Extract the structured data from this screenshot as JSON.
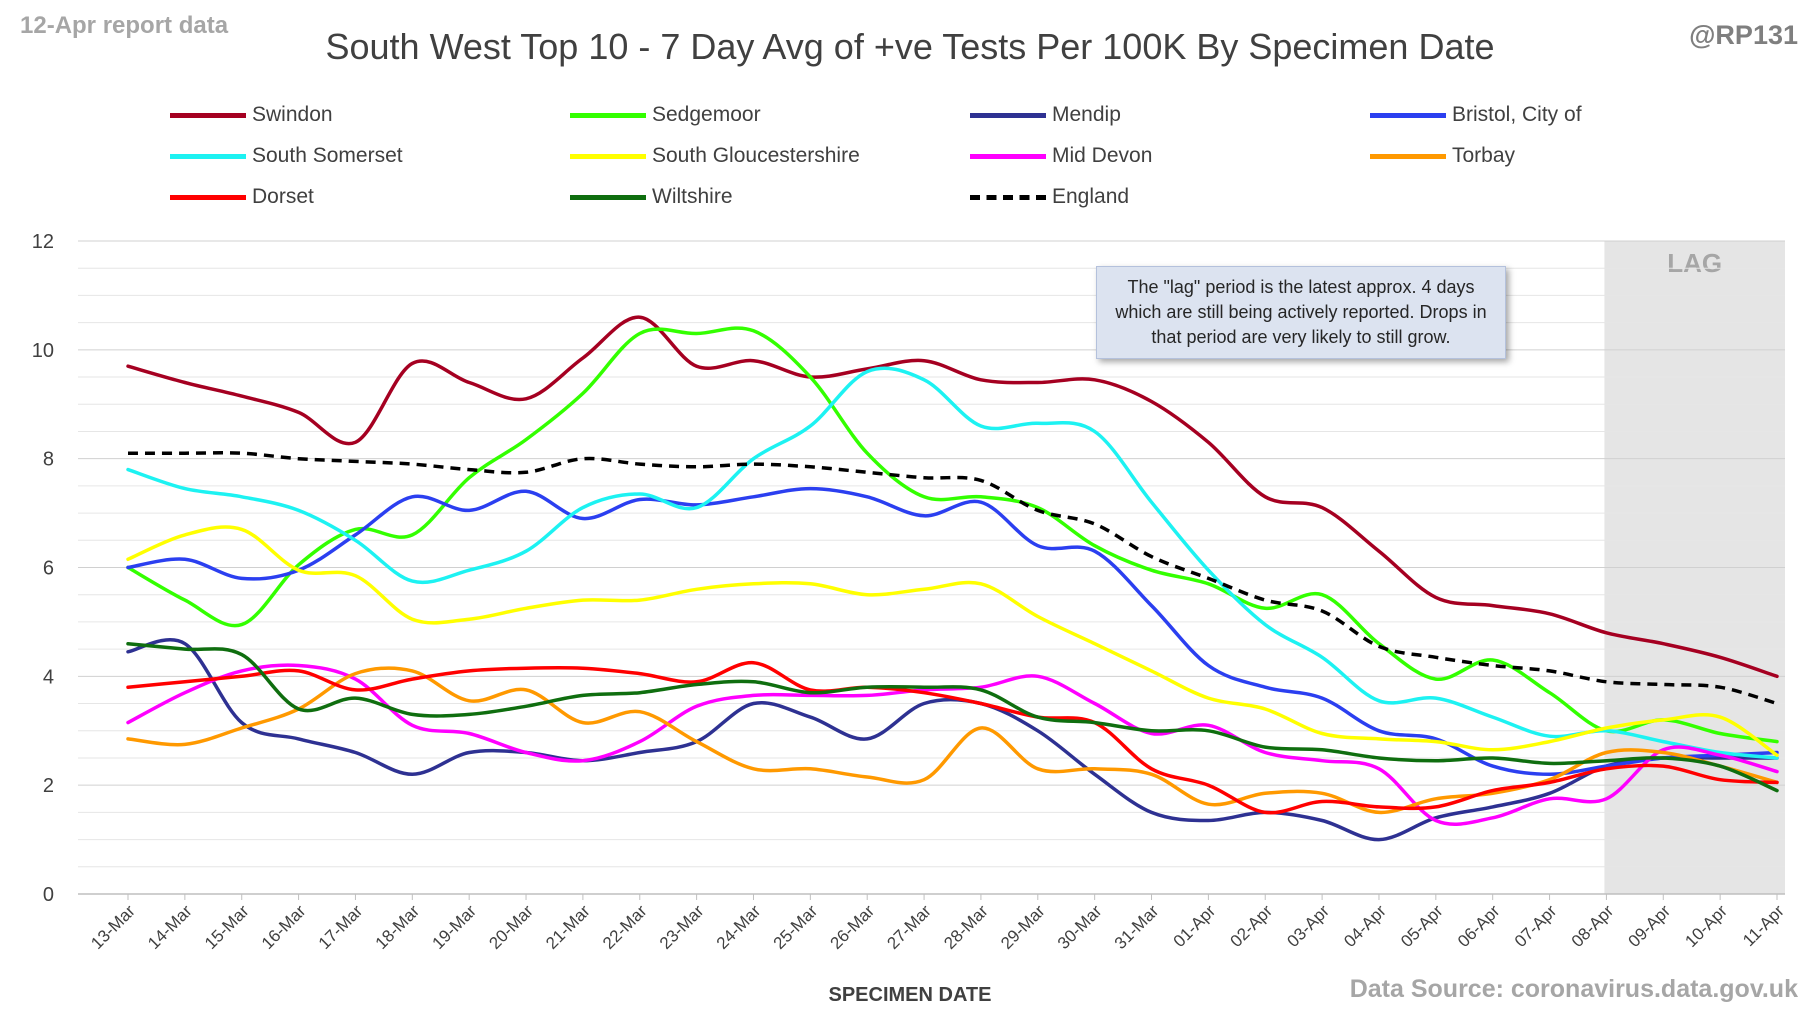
{
  "report_date": "12-Apr report data",
  "handle": "@RP131",
  "data_source": "Data Source: coronavirus.data.gov.uk",
  "lag_label": "LAG",
  "note": "The \"lag\" period is the latest approx. 4 days which are still being actively reported. Drops in that period are very likely to still grow.",
  "chart_data": {
    "type": "line",
    "title": "South West Top 10 - 7 Day Avg of +ve Tests Per 100K By Specimen Date",
    "xlabel": "SPECIMEN DATE",
    "ylabel": "",
    "ylim": [
      0,
      12
    ],
    "yticks": [
      0,
      2,
      4,
      6,
      8,
      10,
      12
    ],
    "grid": true,
    "legend_position": "top",
    "lag_start": "08-Apr",
    "lag_end": "11-Apr",
    "categories": [
      "13-Mar",
      "14-Mar",
      "15-Mar",
      "16-Mar",
      "17-Mar",
      "18-Mar",
      "19-Mar",
      "20-Mar",
      "21-Mar",
      "22-Mar",
      "23-Mar",
      "24-Mar",
      "25-Mar",
      "26-Mar",
      "27-Mar",
      "28-Mar",
      "29-Mar",
      "30-Mar",
      "31-Mar",
      "01-Apr",
      "02-Apr",
      "03-Apr",
      "04-Apr",
      "05-Apr",
      "06-Apr",
      "07-Apr",
      "08-Apr",
      "09-Apr",
      "10-Apr",
      "11-Apr"
    ],
    "series": [
      {
        "name": "Swindon",
        "color": "#a50021",
        "dashed": false,
        "values": [
          9.7,
          9.4,
          9.15,
          8.85,
          8.3,
          9.75,
          9.4,
          9.1,
          9.85,
          10.6,
          9.7,
          9.8,
          9.5,
          9.65,
          9.8,
          9.45,
          9.4,
          9.45,
          9.05,
          8.3,
          7.3,
          7.1,
          6.3,
          5.45,
          5.3,
          5.15,
          4.8,
          4.6,
          4.35,
          4.0
        ]
      },
      {
        "name": "Sedgemoor",
        "color": "#33ff00",
        "dashed": false,
        "values": [
          6.0,
          5.4,
          4.95,
          6.05,
          6.7,
          6.6,
          7.65,
          8.35,
          9.2,
          10.3,
          10.3,
          10.35,
          9.5,
          8.1,
          7.3,
          7.3,
          7.1,
          6.4,
          5.95,
          5.7,
          5.25,
          5.5,
          4.6,
          3.95,
          4.3,
          3.7,
          3.0,
          3.2,
          2.95,
          2.8
        ]
      },
      {
        "name": "Mendip",
        "color": "#2e3192",
        "dashed": false,
        "values": [
          4.45,
          4.6,
          3.15,
          2.85,
          2.6,
          2.2,
          2.6,
          2.6,
          2.45,
          2.6,
          2.8,
          3.5,
          3.25,
          2.85,
          3.5,
          3.5,
          3.0,
          2.2,
          1.5,
          1.35,
          1.5,
          1.35,
          1.0,
          1.4,
          1.6,
          1.85,
          2.35,
          2.5,
          2.5,
          2.5
        ]
      },
      {
        "name": "Bristol, City of",
        "color": "#2b3ff0",
        "dashed": false,
        "values": [
          6.0,
          6.15,
          5.8,
          5.95,
          6.6,
          7.3,
          7.05,
          7.4,
          6.9,
          7.25,
          7.15,
          7.3,
          7.45,
          7.3,
          6.95,
          7.2,
          6.4,
          6.3,
          5.3,
          4.2,
          3.8,
          3.6,
          3.0,
          2.85,
          2.35,
          2.2,
          2.35,
          2.5,
          2.55,
          2.6
        ]
      },
      {
        "name": "South Somerset",
        "color": "#1df2f2",
        "dashed": false,
        "values": [
          7.8,
          7.45,
          7.3,
          7.05,
          6.5,
          5.75,
          5.95,
          6.3,
          7.1,
          7.35,
          7.1,
          8.0,
          8.6,
          9.6,
          9.45,
          8.6,
          8.65,
          8.5,
          7.2,
          5.95,
          4.95,
          4.35,
          3.55,
          3.6,
          3.25,
          2.9,
          3.0,
          2.8,
          2.6,
          2.5
        ]
      },
      {
        "name": "South Gloucestershire",
        "color": "#ffff00",
        "dashed": false,
        "values": [
          6.15,
          6.6,
          6.7,
          5.95,
          5.85,
          5.05,
          5.05,
          5.25,
          5.4,
          5.4,
          5.6,
          5.7,
          5.7,
          5.5,
          5.6,
          5.7,
          5.1,
          4.6,
          4.1,
          3.6,
          3.4,
          2.95,
          2.85,
          2.8,
          2.65,
          2.8,
          3.05,
          3.2,
          3.25,
          2.55
        ]
      },
      {
        "name": "Mid Devon",
        "color": "#ff00ff",
        "dashed": false,
        "values": [
          3.15,
          3.7,
          4.1,
          4.2,
          3.95,
          3.1,
          2.95,
          2.6,
          2.45,
          2.8,
          3.45,
          3.65,
          3.65,
          3.65,
          3.75,
          3.8,
          4.0,
          3.5,
          2.95,
          3.1,
          2.6,
          2.45,
          2.3,
          1.35,
          1.4,
          1.75,
          1.75,
          2.65,
          2.55,
          2.25
        ]
      },
      {
        "name": "Torbay",
        "color": "#ff9900",
        "dashed": false,
        "values": [
          2.85,
          2.75,
          3.05,
          3.4,
          4.05,
          4.1,
          3.55,
          3.75,
          3.15,
          3.35,
          2.8,
          2.3,
          2.3,
          2.15,
          2.1,
          3.05,
          2.3,
          2.3,
          2.2,
          1.65,
          1.85,
          1.85,
          1.5,
          1.75,
          1.85,
          2.1,
          2.6,
          2.6,
          2.35,
          2.05
        ]
      },
      {
        "name": "Dorset",
        "color": "#ff0000",
        "dashed": false,
        "values": [
          3.8,
          3.9,
          4.0,
          4.1,
          3.75,
          3.95,
          4.1,
          4.15,
          4.15,
          4.05,
          3.9,
          4.25,
          3.75,
          3.8,
          3.7,
          3.5,
          3.25,
          3.15,
          2.3,
          2.0,
          1.5,
          1.7,
          1.6,
          1.6,
          1.9,
          2.05,
          2.3,
          2.35,
          2.1,
          2.05
        ]
      },
      {
        "name": "Wiltshire",
        "color": "#0f6e0f",
        "dashed": false,
        "values": [
          4.6,
          4.5,
          4.4,
          3.4,
          3.6,
          3.3,
          3.3,
          3.45,
          3.65,
          3.7,
          3.85,
          3.9,
          3.7,
          3.8,
          3.8,
          3.75,
          3.25,
          3.15,
          3.0,
          3.0,
          2.7,
          2.65,
          2.5,
          2.45,
          2.5,
          2.4,
          2.45,
          2.5,
          2.35,
          1.9
        ]
      },
      {
        "name": "England",
        "color": "#000000",
        "dashed": true,
        "values": [
          8.1,
          8.1,
          8.1,
          8.0,
          7.95,
          7.9,
          7.8,
          7.75,
          8.0,
          7.9,
          7.85,
          7.9,
          7.85,
          7.75,
          7.65,
          7.6,
          7.05,
          6.8,
          6.2,
          5.8,
          5.4,
          5.2,
          4.55,
          4.35,
          4.2,
          4.1,
          3.9,
          3.85,
          3.8,
          3.5
        ]
      }
    ]
  }
}
